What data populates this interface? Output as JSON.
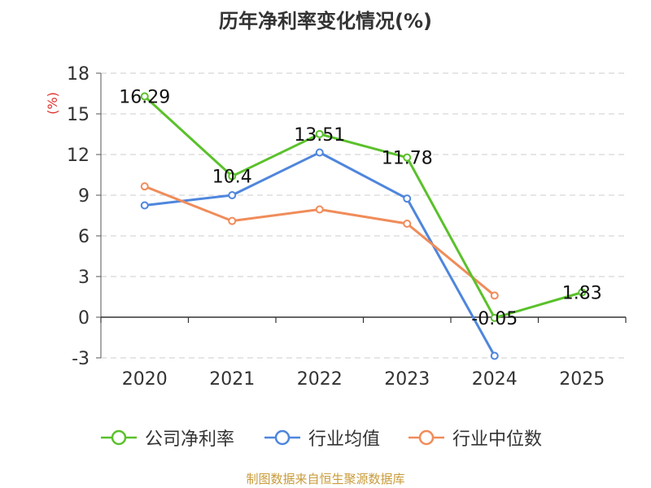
{
  "chart_data": {
    "type": "line",
    "title": "历年净利率变化情况(%)",
    "ylabel": "(%)",
    "xlabel": "",
    "categories": [
      "2020",
      "2021",
      "2022",
      "2023",
      "2024",
      "2025"
    ],
    "ylim": [
      -3,
      18
    ],
    "yticks": [
      -3,
      0,
      3,
      6,
      9,
      12,
      15,
      18
    ],
    "grid": true,
    "legend_position": "bottom",
    "series": [
      {
        "name": "公司净利率",
        "color": "#5ac12b",
        "values": [
          16.29,
          10.4,
          13.51,
          11.78,
          -0.05,
          1.83
        ],
        "labels": [
          "16.29",
          "10.4",
          "13.51",
          "11.78",
          "-0.05",
          "1.83"
        ]
      },
      {
        "name": "行业均值",
        "color": "#4f86dd",
        "values": [
          8.25,
          9.0,
          12.15,
          8.75,
          -2.85,
          null
        ]
      },
      {
        "name": "行业中位数",
        "color": "#f08c5a",
        "values": [
          9.65,
          7.1,
          7.95,
          6.9,
          1.6,
          null
        ]
      }
    ]
  },
  "source": "制图数据来自恒生聚源数据库"
}
